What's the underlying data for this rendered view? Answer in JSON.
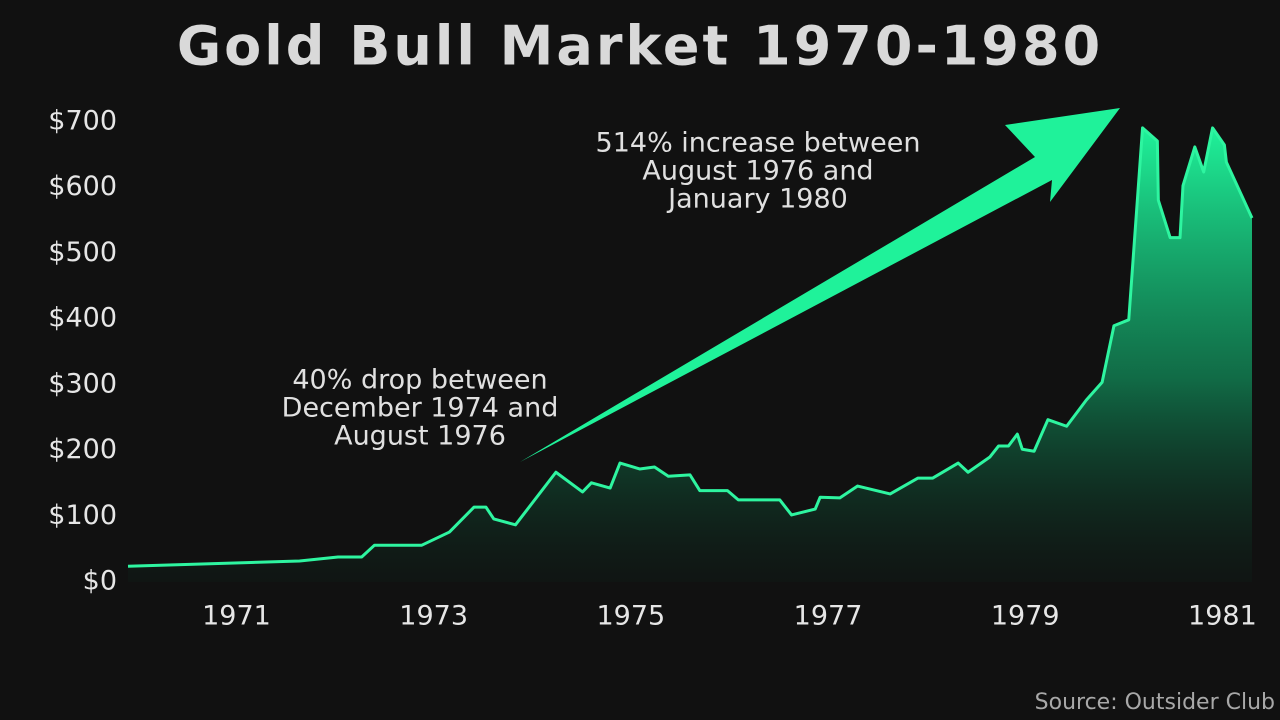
{
  "chart_data": {
    "type": "area",
    "title": "Gold Bull Market 1970-1980",
    "source": "Source: Outsider Club",
    "annotations": [
      {
        "lines": [
          "40% drop between",
          "December 1974 and",
          "August 1976"
        ]
      },
      {
        "lines": [
          "514% increase between",
          "August 1976 and",
          "January 1980"
        ]
      }
    ],
    "color": "#2ef5a0",
    "x": [
      1969.9,
      1971.64,
      1972.03,
      1972.27,
      1972.4,
      1972.88,
      1973.16,
      1973.41,
      1973.53,
      1973.61,
      1973.83,
      1974.24,
      1974.51,
      1974.6,
      1974.79,
      1974.89,
      1975.09,
      1975.24,
      1975.38,
      1975.6,
      1975.7,
      1975.98,
      1976.09,
      1976.51,
      1976.63,
      1976.87,
      1976.92,
      1977.12,
      1977.3,
      1977.63,
      1977.91,
      1978.06,
      1978.32,
      1978.42,
      1978.64,
      1978.73,
      1978.83,
      1978.92,
      1978.97,
      1979.09,
      1979.23,
      1979.42,
      1979.62,
      1979.78,
      1979.9,
      1980.05,
      1980.19,
      1980.34,
      1980.35,
      1980.47,
      1980.57,
      1980.6,
      1980.72,
      1980.81,
      1980.9,
      1981.02,
      1981.04,
      1981.3
    ],
    "values": [
      24,
      32,
      38,
      38,
      56,
      56,
      76,
      114,
      114,
      96,
      87,
      167,
      137,
      151,
      143,
      181,
      172,
      175,
      161,
      163,
      139,
      139,
      125,
      125,
      102,
      111,
      129,
      128,
      146,
      134,
      158,
      158,
      181,
      167,
      190,
      207,
      207,
      225,
      202,
      199,
      247,
      237,
      277,
      304,
      390,
      399,
      691,
      671,
      581,
      524,
      524,
      603,
      662,
      624,
      691,
      665,
      639,
      554
    ],
    "xlim": [
      1969.9,
      1981.3
    ],
    "xticks": [
      1971,
      1973,
      1975,
      1977,
      1979,
      1981
    ],
    "ylim": [
      0,
      700
    ],
    "yticks": [
      {
        "value": 0,
        "label": "$0"
      },
      {
        "value": 100,
        "label": "$100"
      },
      {
        "value": 200,
        "label": "$200"
      },
      {
        "value": 300,
        "label": "$300"
      },
      {
        "value": 400,
        "label": "$400"
      },
      {
        "value": 500,
        "label": "$500"
      },
      {
        "value": 600,
        "label": "$600"
      },
      {
        "value": 700,
        "label": "$700"
      }
    ]
  }
}
